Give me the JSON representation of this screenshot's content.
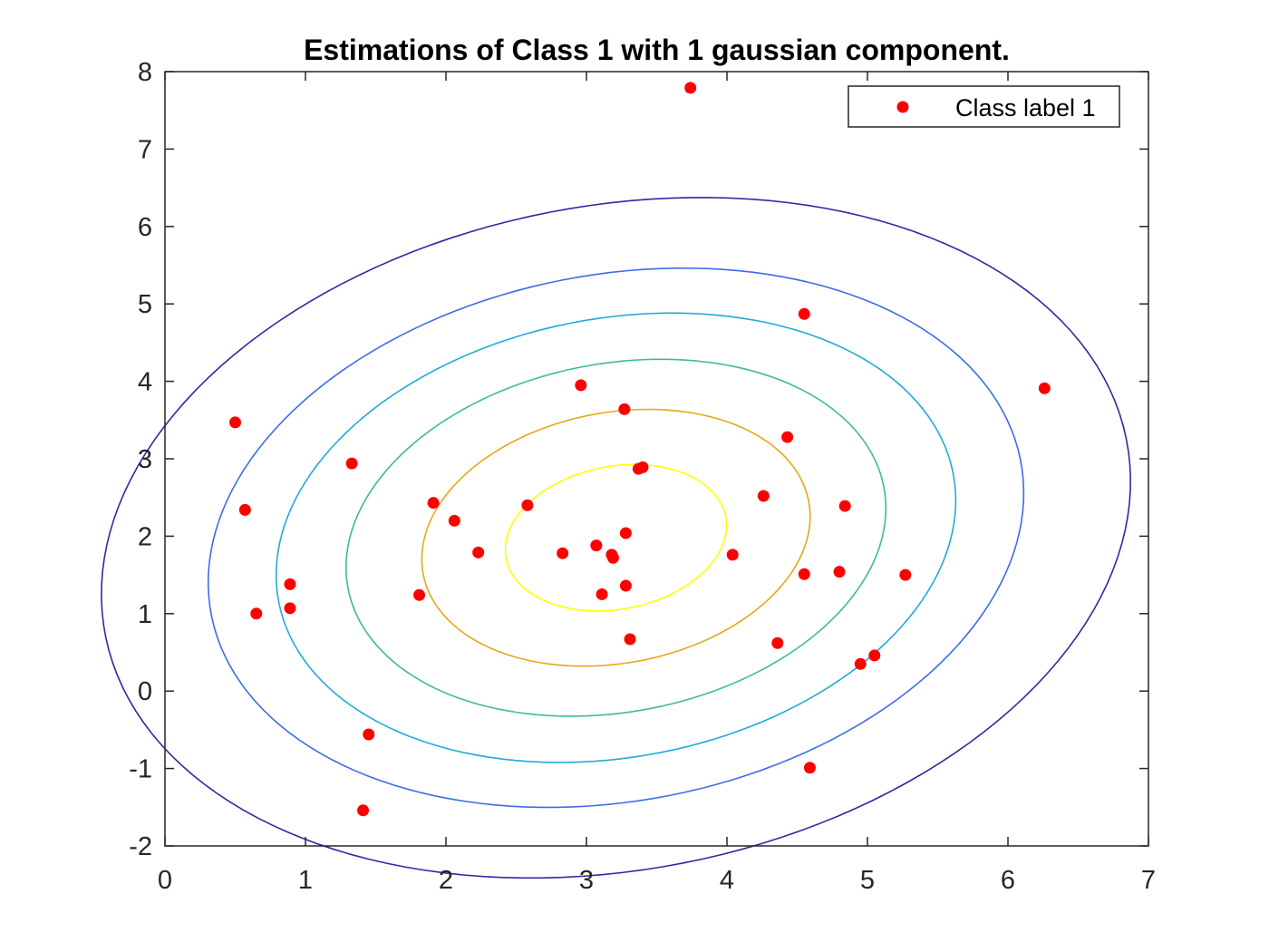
{
  "chart_data": {
    "type": "scatter",
    "title": "Estimations of Class 1 with 1 gaussian component.",
    "xlabel": "",
    "ylabel": "",
    "xlim": [
      0,
      7
    ],
    "ylim": [
      -2,
      8
    ],
    "xticks": [
      "0",
      "1",
      "2",
      "3",
      "4",
      "5",
      "6",
      "7"
    ],
    "yticks": [
      "-2",
      "-1",
      "0",
      "1",
      "2",
      "3",
      "4",
      "5",
      "6",
      "7",
      "8"
    ],
    "grid": false,
    "legend": {
      "placement": "top-right",
      "entries": [
        "Class label 1"
      ]
    },
    "series": [
      {
        "name": "Class label 1",
        "marker": "filled-circle",
        "color": "#ff0000",
        "points": [
          [
            3.74,
            7.79
          ],
          [
            4.55,
            4.87
          ],
          [
            6.26,
            3.91
          ],
          [
            2.96,
            3.95
          ],
          [
            3.27,
            3.64
          ],
          [
            0.5,
            3.47
          ],
          [
            4.43,
            3.28
          ],
          [
            1.33,
            2.94
          ],
          [
            3.37,
            2.87
          ],
          [
            3.4,
            2.89
          ],
          [
            4.26,
            2.52
          ],
          [
            1.91,
            2.43
          ],
          [
            2.58,
            2.4
          ],
          [
            4.84,
            2.39
          ],
          [
            0.57,
            2.34
          ],
          [
            2.06,
            2.2
          ],
          [
            3.28,
            2.04
          ],
          [
            3.07,
            1.88
          ],
          [
            2.23,
            1.79
          ],
          [
            2.83,
            1.78
          ],
          [
            3.18,
            1.76
          ],
          [
            3.19,
            1.72
          ],
          [
            4.04,
            1.76
          ],
          [
            4.55,
            1.51
          ],
          [
            4.8,
            1.54
          ],
          [
            5.27,
            1.5
          ],
          [
            0.89,
            1.38
          ],
          [
            3.28,
            1.36
          ],
          [
            1.81,
            1.24
          ],
          [
            3.11,
            1.25
          ],
          [
            0.89,
            1.07
          ],
          [
            0.65,
            1.0
          ],
          [
            3.31,
            0.67
          ],
          [
            4.36,
            0.62
          ],
          [
            5.05,
            0.46
          ],
          [
            4.95,
            0.35
          ],
          [
            1.45,
            -0.56
          ],
          [
            4.59,
            -0.99
          ],
          [
            1.41,
            -1.54
          ]
        ]
      }
    ],
    "contours": {
      "center": [
        3.21,
        1.98
      ],
      "covariance": [
        [
          1.91,
          0.38
        ],
        [
          0.38,
          2.75
        ]
      ],
      "levels_mahalanobis": [
        0.57,
        1.0,
        1.39,
        1.75,
        2.1,
        2.65
      ],
      "colors": [
        "#ffff00",
        "#e6a817",
        "#3cbf88",
        "#22aad8",
        "#3d6ceb",
        "#2e2aa0"
      ]
    }
  }
}
